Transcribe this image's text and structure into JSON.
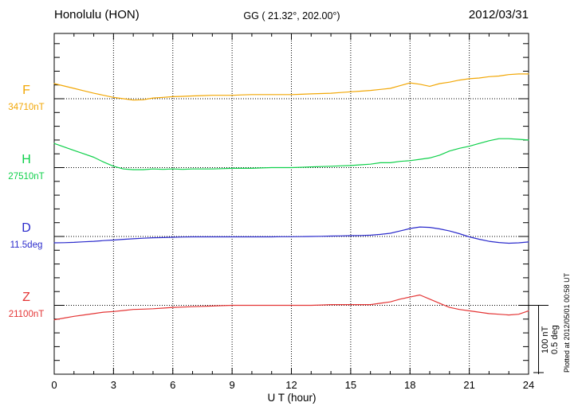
{
  "header": {
    "station": "Honolulu (HON)",
    "coords": "GG ( 21.32°, 202.00°)",
    "date": "2012/03/31"
  },
  "side_note": "Plotted at 2012/05/01 00:58 UT",
  "chart_data": {
    "type": "line",
    "title": "Honolulu (HON) magnetogram 2012/03/31",
    "xlabel": "U T (hour)",
    "x_range": [
      0,
      24
    ],
    "x_tick_interval_major": 3,
    "x_tick_interval_minor": 1,
    "x_ticks": [
      "0",
      "3",
      "6",
      "9",
      "12",
      "15",
      "18",
      "21",
      "24"
    ],
    "x_step_hours": 0.5,
    "grid": "vertical dotted lines every 3 h; horizontal dotted baseline for each trace",
    "legend_position": "left margin, one colored label per trace",
    "scale_bar": {
      "nT_label": "100 nT",
      "deg_label": "0.5 deg",
      "nT_per_division": 100,
      "deg_per_division": 0.5
    },
    "series": [
      {
        "name": "F",
        "unit": "nT",
        "baseline_label": "34710nT",
        "baseline_value": 34710,
        "color": "#f2a705",
        "offsets": [
          22,
          18.5,
          15,
          11.5,
          8,
          5,
          2,
          0,
          -2,
          -1.5,
          1,
          2,
          3,
          3.5,
          4,
          4.5,
          5,
          5,
          5,
          5.5,
          6,
          6,
          6,
          6,
          6,
          6.5,
          7,
          7.5,
          8,
          9,
          10,
          11,
          12,
          13.5,
          15,
          19,
          23,
          21,
          18,
          22,
          24,
          27,
          29,
          30,
          32,
          33,
          35,
          36,
          36
        ]
      },
      {
        "name": "H",
        "unit": "nT",
        "baseline_label": "27510nT",
        "baseline_value": 27510,
        "color": "#0ed04a",
        "offsets": [
          35,
          30,
          25,
          20,
          15,
          8,
          2,
          -2,
          -3,
          -3,
          -2,
          -2.5,
          -2,
          -2.5,
          -2,
          -2,
          -2,
          -1.5,
          -1,
          -1,
          -1,
          -0.5,
          0,
          0,
          0,
          0.5,
          1,
          1.5,
          2,
          2.5,
          3,
          4,
          5,
          7,
          7,
          9,
          10,
          12,
          14,
          18,
          24,
          28,
          31,
          35,
          39,
          42,
          42,
          41,
          40
        ]
      },
      {
        "name": "D",
        "unit": "deg",
        "baseline_label": "11.5deg",
        "baseline_value": 11.5,
        "color": "#2b2bcc",
        "offsets": [
          -0.046,
          -0.045,
          -0.043,
          -0.039,
          -0.035,
          -0.03,
          -0.026,
          -0.021,
          -0.017,
          -0.013,
          -0.009,
          -0.008,
          -0.006,
          -0.004,
          -0.003,
          -0.003,
          -0.003,
          -0.003,
          -0.003,
          -0.003,
          -0.003,
          -0.003,
          -0.003,
          -0.002,
          -0.002,
          -0.001,
          0,
          0.001,
          0.003,
          0.004,
          0.006,
          0.007,
          0.009,
          0.015,
          0.023,
          0.04,
          0.058,
          0.069,
          0.066,
          0.055,
          0.04,
          0.02,
          -0.003,
          -0.02,
          -0.035,
          -0.044,
          -0.049,
          -0.046,
          -0.04
        ]
      },
      {
        "name": "Z",
        "unit": "nT",
        "baseline_label": "21100nT",
        "baseline_value": 21100,
        "color": "#e43535",
        "offsets": [
          -21,
          -18.5,
          -16,
          -14,
          -12,
          -10,
          -9,
          -7.5,
          -6,
          -5.5,
          -5,
          -4,
          -3,
          -2.5,
          -2,
          -1.5,
          -1,
          -0.5,
          0,
          0,
          0,
          0,
          0,
          0,
          0,
          0,
          0,
          0.5,
          1,
          1,
          1,
          1,
          1,
          3,
          5,
          9,
          12,
          15,
          9,
          3,
          -3,
          -6,
          -8,
          -10,
          -12,
          -13,
          -14,
          -13,
          -8
        ]
      }
    ]
  }
}
